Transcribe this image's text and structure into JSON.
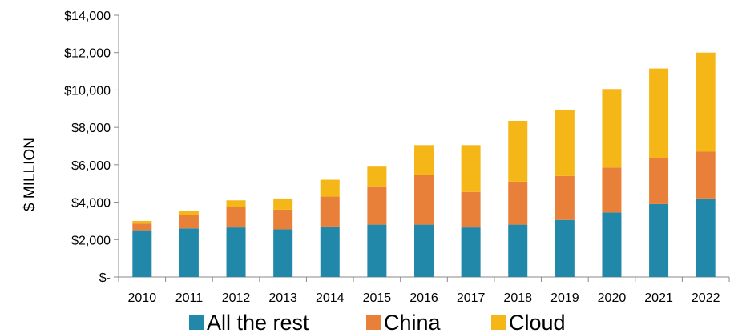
{
  "chart_data": {
    "type": "bar",
    "stacked": true,
    "categories": [
      "2010",
      "2011",
      "2012",
      "2013",
      "2014",
      "2015",
      "2016",
      "2017",
      "2018",
      "2019",
      "2020",
      "2021",
      "2022"
    ],
    "series": [
      {
        "name": "All the rest",
        "color": "#2288AA",
        "values": [
          2500,
          2600,
          2650,
          2550,
          2700,
          2800,
          2800,
          2650,
          2800,
          3050,
          3450,
          3900,
          4200
        ]
      },
      {
        "name": "China",
        "color": "#E8803A",
        "values": [
          350,
          700,
          1100,
          1050,
          1600,
          2050,
          2650,
          1900,
          2300,
          2350,
          2400,
          2450,
          2500
        ]
      },
      {
        "name": "Cloud",
        "color": "#F5B718",
        "values": [
          150,
          250,
          350,
          600,
          900,
          1050,
          1600,
          2500,
          3250,
          3550,
          4200,
          4800,
          5300
        ]
      }
    ],
    "ylabel": "$ MILLION",
    "ylim": [
      0,
      14000
    ],
    "yticks": [
      {
        "value": 0,
        "label": "$-"
      },
      {
        "value": 2000,
        "label": "$2,000"
      },
      {
        "value": 4000,
        "label": "$4,000"
      },
      {
        "value": 6000,
        "label": "$6,000"
      },
      {
        "value": 8000,
        "label": "$8,000"
      },
      {
        "value": 10000,
        "label": "$10,000"
      },
      {
        "value": 12000,
        "label": "$12,000"
      },
      {
        "value": 14000,
        "label": "$14,000"
      }
    ],
    "grid": false,
    "legend": "bottom"
  }
}
